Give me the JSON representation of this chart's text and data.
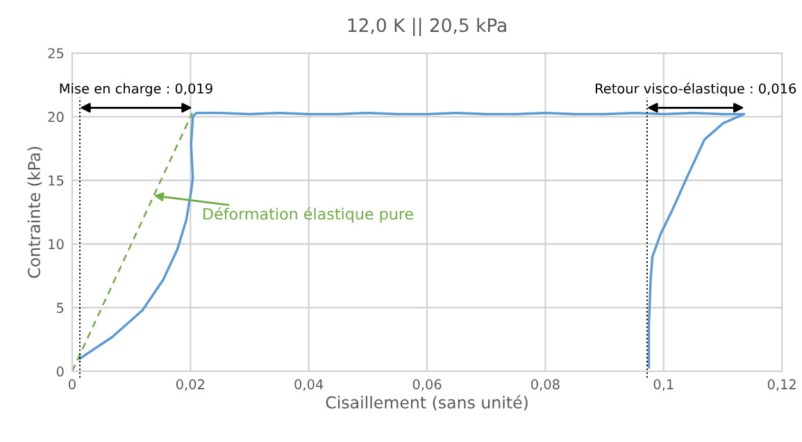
{
  "chart_data": {
    "type": "line",
    "title": "12,0 K || 20,5 kPa",
    "xlabel": "Cisaillement (sans unité)",
    "ylabel": "Contrainte (kPa)",
    "xlim": [
      0,
      0.12
    ],
    "ylim": [
      0,
      25
    ],
    "xticks": [
      0,
      {
        "value": 0.02,
        "label": "0,02"
      },
      {
        "value": 0.04,
        "label": "0,04"
      },
      {
        "value": 0.06,
        "label": "0,06"
      },
      {
        "value": 0.08,
        "label": "0,08"
      },
      {
        "value": 0.1,
        "label": "0,1"
      },
      {
        "value": 0.12,
        "label": "0,12"
      }
    ],
    "yticks": [
      0,
      5,
      10,
      15,
      20,
      25
    ],
    "grid": true,
    "legend": false,
    "marker": "none",
    "series": [
      {
        "color": "#5b9bd5",
        "line_style": "solid",
        "x": [
          0.0013,
          0.0068,
          0.0119,
          0.0154,
          0.0178,
          0.0193,
          0.0201,
          0.0204,
          0.0201,
          0.0204,
          0.021,
          0.025,
          0.03,
          0.035,
          0.04,
          0.045,
          0.05,
          0.055,
          0.06,
          0.065,
          0.07,
          0.075,
          0.08,
          0.085,
          0.09,
          0.095,
          0.1,
          0.105,
          0.11,
          0.1136,
          0.1101,
          0.1069,
          0.1039,
          0.1015,
          0.0995,
          0.0981,
          0.0978,
          0.0975,
          0.0975
        ],
        "values": [
          1.0,
          2.7,
          4.8,
          7.2,
          9.6,
          11.9,
          14.1,
          15.2,
          17.8,
          20.0,
          20.3,
          20.3,
          20.2,
          20.3,
          20.2,
          20.2,
          20.3,
          20.2,
          20.2,
          20.3,
          20.2,
          20.2,
          20.3,
          20.2,
          20.2,
          20.3,
          20.2,
          20.3,
          20.2,
          20.2,
          19.5,
          18.2,
          15.2,
          12.7,
          10.8,
          9.0,
          7.2,
          3.6,
          0.3
        ]
      },
      {
        "color": "#70ad47",
        "line_style": "dashed",
        "x": [
          0,
          0.0203
        ],
        "values": [
          0,
          20.3
        ]
      }
    ],
    "ref_lines": [
      {
        "axis": "x",
        "value": 0.0013,
        "color": "#000000",
        "line_style": "dotted"
      },
      {
        "axis": "x",
        "value": 0.0972,
        "color": "#000000",
        "line_style": "dotted"
      }
    ],
    "annotations": [
      "Mise en charge : 0,019",
      "Retour visco-élastique : 0,016",
      {
        "text": "Déformation élastique pure",
        "x": 0.0138,
        "y": 13.8
      }
    ]
  }
}
